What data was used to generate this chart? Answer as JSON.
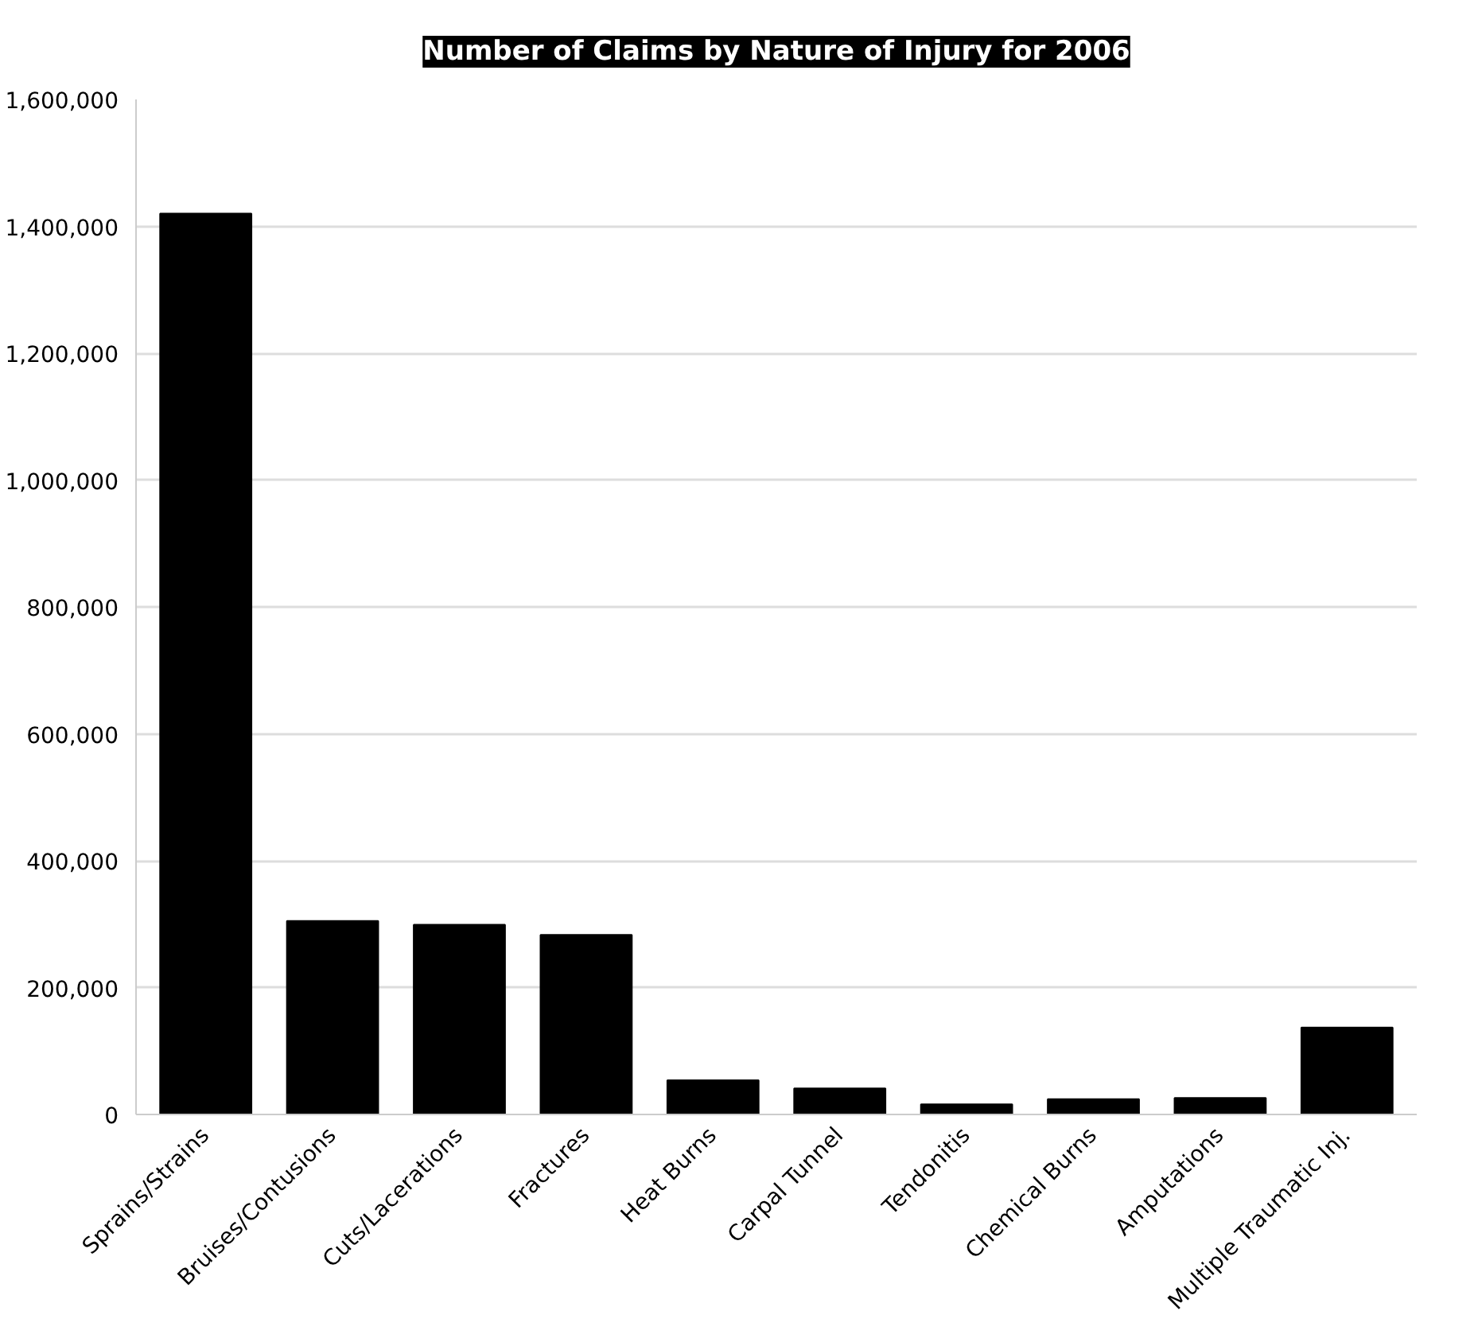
{
  "chart_data": {
    "type": "bar",
    "title": "Number of Claims by Nature of Injury for 2006",
    "categories": [
      "Sprains/Strains",
      "Bruises/Contusions",
      "Cuts/Lacerations",
      "Fractures",
      "Heat Burns",
      "Carpal Tunnel",
      "Tendonitis",
      "Chemical Burns",
      "Amputations",
      "Multiple Traumatic Inj."
    ],
    "values": [
      1420000,
      305000,
      299000,
      283000,
      54000,
      41000,
      16000,
      24000,
      26000,
      137000
    ],
    "color": "#000000",
    "ylim": [
      0,
      1600000
    ],
    "yticks": [
      {
        "value": 0,
        "label": "0"
      },
      {
        "value": 200000,
        "label": "200,000"
      },
      {
        "value": 400000,
        "label": "400,000"
      },
      {
        "value": 600000,
        "label": "600,000"
      },
      {
        "value": 800000,
        "label": "800,000"
      },
      {
        "value": 1000000,
        "label": "1,000,000"
      },
      {
        "value": 1200000,
        "label": "1,200,000"
      },
      {
        "value": 1400000,
        "label": "1,400,000"
      },
      {
        "value": 1600000,
        "label": "1,600,000"
      }
    ],
    "grid": "y"
  }
}
